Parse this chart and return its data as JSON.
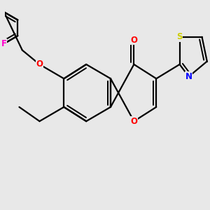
{
  "bg_color": "#e8e8e8",
  "bond_color": "#000000",
  "bond_width": 1.6,
  "atom_colors": {
    "O": "#ff0000",
    "N": "#0000ff",
    "S": "#cccc00",
    "F": "#ff00cc",
    "C": "#000000"
  },
  "font_size": 8.5
}
